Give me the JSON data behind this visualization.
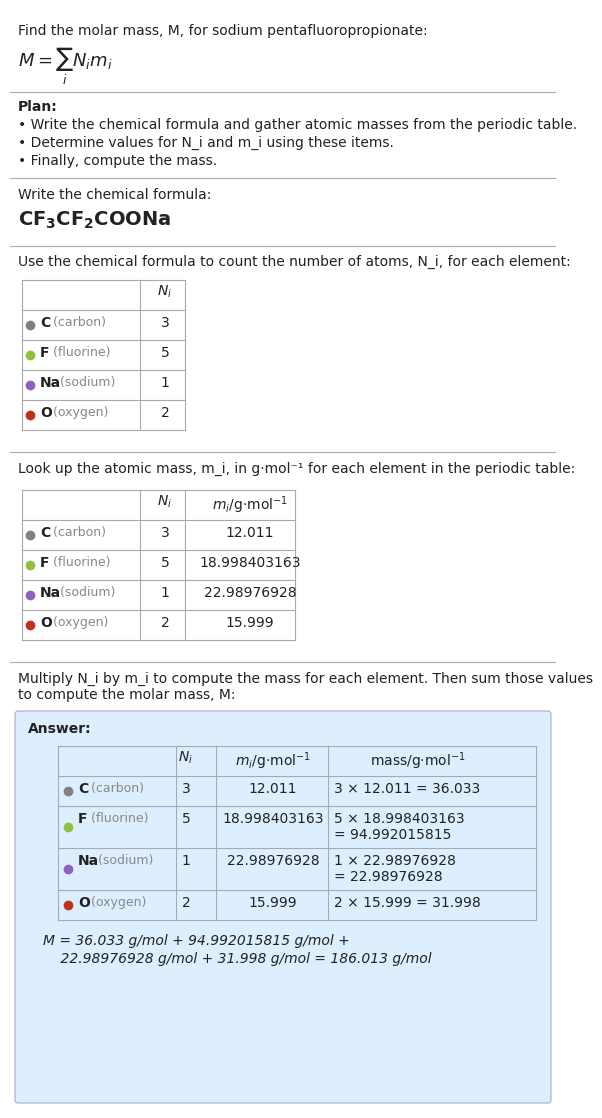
{
  "title_line": "Find the molar mass, M, for sodium pentafluoropropionate:",
  "formula_display": "M = ∑ N_i m_i",
  "formula_sub": "i",
  "bg_color": "#ffffff",
  "plan_header": "Plan:",
  "plan_bullets": [
    "• Write the chemical formula and gather atomic masses from the periodic table.",
    "• Determine values for N_i and m_i using these items.",
    "• Finally, compute the mass."
  ],
  "chem_formula_header": "Write the chemical formula:",
  "chem_formula": "CF₃CF₂COONa",
  "count_header": "Use the chemical formula to count the number of atoms, N_i, for each element:",
  "elements": [
    "C (carbon)",
    "F (fluorine)",
    "Na (sodium)",
    "O (oxygen)"
  ],
  "element_symbols": [
    "C",
    "F",
    "Na",
    "O"
  ],
  "element_names": [
    "carbon",
    "fluorine",
    "sodium",
    "oxygen"
  ],
  "element_colors": [
    "#808080",
    "#90c040",
    "#9060c0",
    "#c03020"
  ],
  "N_i": [
    3,
    5,
    1,
    2
  ],
  "m_i": [
    "12.011",
    "18.998403163",
    "22.98976928",
    "15.999"
  ],
  "mass_expr": [
    "3 × 12.011 = 36.033",
    "5 × 18.998403163\n= 94.992015815",
    "1 × 22.98976928\n= 22.98976928",
    "2 × 15.999 = 31.998"
  ],
  "lookup_header": "Look up the atomic mass, m_i, in g·mol⁻¹ for each element in the periodic table:",
  "multiply_header": "Multiply N_i by m_i to compute the mass for each element. Then sum those values\nto compute the molar mass, M:",
  "answer_label": "Answer:",
  "answer_box_color": "#ddeeff",
  "final_answer": "M = 36.033 g/mol + 94.992015815 g/mol +\n    22.98976928 g/mol + 31.998 g/mol = 186.013 g/mol",
  "separator_color": "#aaaaaa",
  "table_line_color": "#aaaaaa",
  "text_color": "#222222",
  "gray_text": "#888888"
}
